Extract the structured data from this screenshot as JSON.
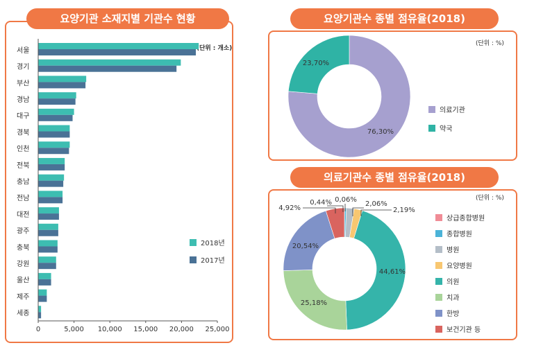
{
  "colors": {
    "accent": "#f07845",
    "bar_2018": "#3dbdb1",
    "bar_2017": "#4a7296",
    "pie1": [
      "#a6a0cf",
      "#2fb3a5"
    ],
    "pie2": [
      "#f08c96",
      "#4bb3d8",
      "#b4bec8",
      "#f8c771",
      "#35b4aa",
      "#a9d49a",
      "#7f92c8",
      "#d9645f"
    ]
  },
  "chart_data": [
    {
      "type": "bar",
      "orientation": "horizontal",
      "title": "요양기관 소재지별 기관수 현황",
      "unit_label": "(단위 : 개소)",
      "categories": [
        "서울",
        "경기",
        "부산",
        "경남",
        "대구",
        "경북",
        "인천",
        "전북",
        "충남",
        "전남",
        "대전",
        "광주",
        "충북",
        "강원",
        "울산",
        "제주",
        "세종"
      ],
      "series": [
        {
          "name": "2018년",
          "values": [
            22400,
            19900,
            6700,
            5300,
            5000,
            4400,
            4400,
            3700,
            3600,
            3400,
            2900,
            2800,
            2700,
            2500,
            1800,
            1200,
            400
          ]
        },
        {
          "name": "2017년",
          "values": [
            22000,
            19300,
            6600,
            5200,
            4800,
            4400,
            4300,
            3700,
            3500,
            3400,
            2900,
            2800,
            2700,
            2500,
            1800,
            1200,
            400
          ]
        }
      ],
      "xlim": [
        0,
        25000
      ],
      "x_ticks": [
        "0",
        "5,000",
        "10,000",
        "15,000",
        "20,000",
        "25,000"
      ],
      "x_tick_values": [
        0,
        5000,
        10000,
        15000,
        20000,
        25000
      ],
      "legend_position": "bottom-right"
    },
    {
      "type": "pie",
      "donut": true,
      "title": "요양기관수 종별 점유율(2018)",
      "unit_label": "(단위 : %)",
      "labels": [
        "의료기관",
        "약국"
      ],
      "values": [
        76.3,
        23.7
      ],
      "value_labels": [
        "76,30%",
        "23,70%"
      ],
      "legend_position": "right"
    },
    {
      "type": "pie",
      "donut": true,
      "title": "의료기관수 종별 점유율(2018)",
      "unit_label": "(단위 : %)",
      "labels": [
        "상급종합병원",
        "종합병원",
        "병원",
        "요양병원",
        "의원",
        "치과",
        "한방",
        "보건기관 등"
      ],
      "values": [
        0.06,
        0.44,
        2.06,
        2.19,
        44.61,
        25.18,
        20.54,
        4.92
      ],
      "value_labels": [
        "0,06%",
        "0,44%",
        "2,06%",
        "2,19%",
        "44,61%",
        "25,18%",
        "20,54%",
        "4,92%"
      ],
      "legend_position": "right"
    }
  ]
}
